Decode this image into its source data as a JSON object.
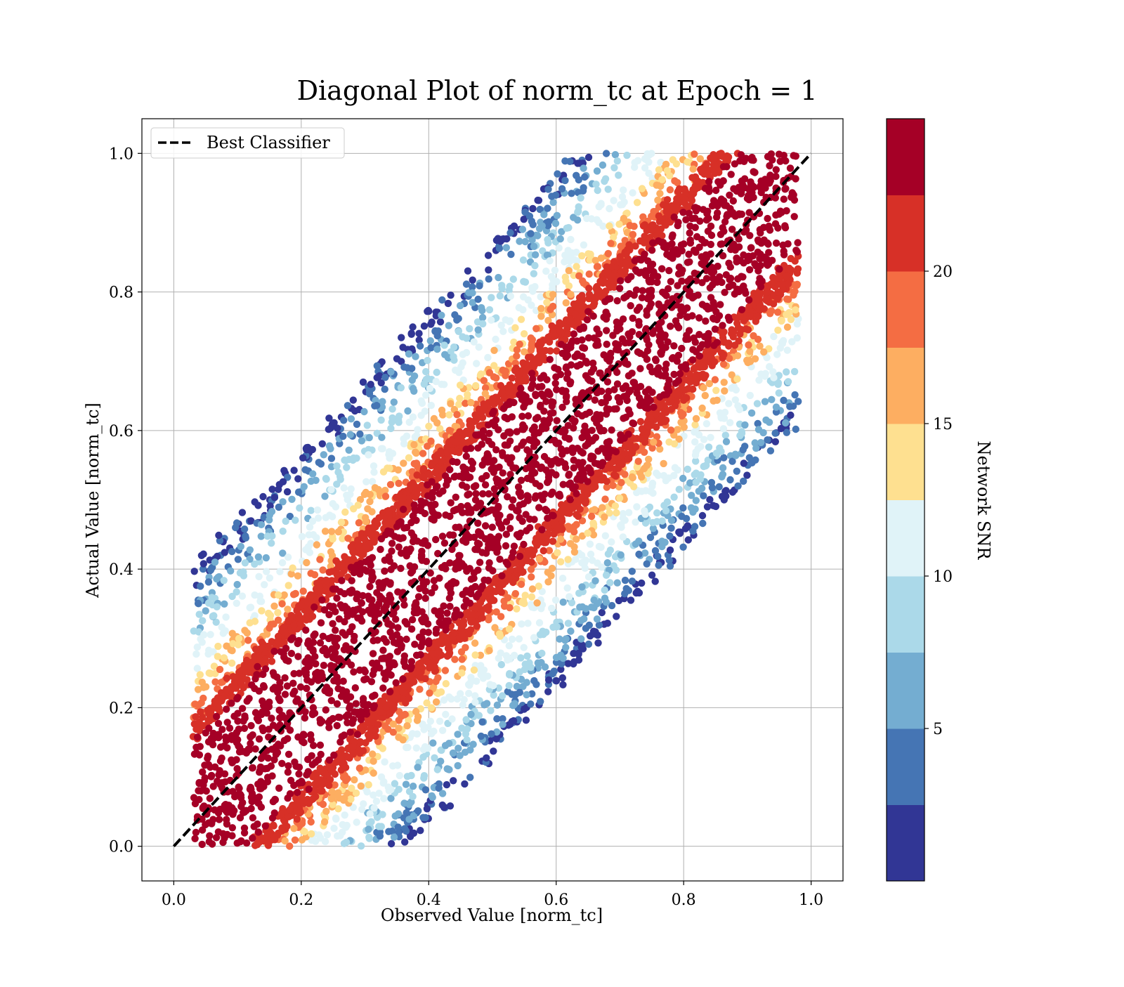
{
  "chart_data": {
    "type": "scatter",
    "title": "Diagonal Plot of norm_tc at Epoch = 1",
    "xlabel": "Observed Value [norm_tc]",
    "ylabel": "Actual Value [norm_tc]",
    "xlim": [
      -0.05,
      1.05
    ],
    "ylim": [
      -0.05,
      1.05
    ],
    "x_ticks": [
      "0.0",
      "0.2",
      "0.4",
      "0.6",
      "0.8",
      "1.0"
    ],
    "y_ticks": [
      "0.0",
      "0.2",
      "0.4",
      "0.6",
      "0.8",
      "1.0"
    ],
    "grid": true,
    "legend": {
      "placement": "top-left",
      "entries": [
        "Best Classifier"
      ]
    },
    "reference_line": {
      "name": "Best Classifier",
      "style": "dashed",
      "color": "#000000",
      "x": [
        0,
        1
      ],
      "y": [
        0,
        1
      ]
    },
    "colorbar": {
      "label": "Network SNR",
      "range": [
        0.0,
        25.0
      ],
      "ticks": [
        "5",
        "10",
        "15",
        "20"
      ],
      "tick_values": [
        5,
        10,
        15,
        20
      ],
      "colors": [
        "#313695",
        "#4575b4",
        "#74add1",
        "#abd9e9",
        "#e0f3f8",
        "#fee090",
        "#fdae61",
        "#f46d43",
        "#d73027",
        "#a50026"
      ]
    },
    "series": [
      {
        "structure": "points scattered around the diagonal; high SNR (dark red) form a dense band of half-width ~0.12 in x, lower SNR points spread farther from the diagonal",
        "x_range": [
          0.03,
          0.98
        ],
        "y_range": [
          0.0,
          1.0
        ],
        "band": [
          {
            "snr": 24,
            "max_offset": 0.12
          },
          {
            "snr": 21,
            "max_offset": 0.15
          },
          {
            "snr": 18,
            "max_offset": 0.18
          },
          {
            "snr": 15,
            "max_offset": 0.21
          },
          {
            "snr": 11,
            "max_offset": 0.26
          },
          {
            "snr": 8,
            "max_offset": 0.3
          },
          {
            "snr": 5,
            "max_offset": 0.34
          },
          {
            "snr": 2,
            "max_offset": 0.37
          }
        ]
      }
    ]
  }
}
